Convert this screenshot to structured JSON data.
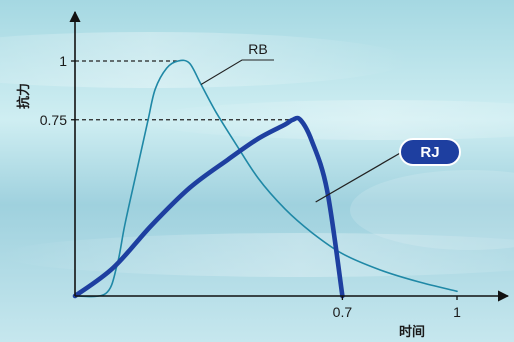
{
  "chart_data": {
    "type": "line",
    "xlabel": "时间",
    "ylabel": "抗力",
    "xlim": [
      0,
      1.1
    ],
    "ylim": [
      0,
      1.15
    ],
    "x_ticks": [
      {
        "value": 0.7,
        "label": "0.7"
      },
      {
        "value": 1,
        "label": "1"
      }
    ],
    "y_ticks": [
      {
        "value": 1,
        "label": "1"
      },
      {
        "value": 0.75,
        "label": "0.75"
      }
    ],
    "grid": false,
    "series": [
      {
        "name": "RB",
        "color": "#1f88a6",
        "width": 1.6,
        "points": [
          [
            0.0,
            0.0
          ],
          [
            0.08,
            0.01
          ],
          [
            0.11,
            0.13
          ],
          [
            0.13,
            0.3
          ],
          [
            0.16,
            0.52
          ],
          [
            0.19,
            0.74
          ],
          [
            0.21,
            0.88
          ],
          [
            0.24,
            0.97
          ],
          [
            0.27,
            1.0
          ],
          [
            0.3,
            0.99
          ],
          [
            0.33,
            0.9
          ],
          [
            0.37,
            0.78
          ],
          [
            0.42,
            0.65
          ],
          [
            0.48,
            0.5
          ],
          [
            0.55,
            0.37
          ],
          [
            0.62,
            0.27
          ],
          [
            0.7,
            0.18
          ],
          [
            0.8,
            0.11
          ],
          [
            0.9,
            0.06
          ],
          [
            1.0,
            0.02
          ]
        ]
      },
      {
        "name": "RJ",
        "color": "#1e3fa0",
        "width": 4.6,
        "points": [
          [
            0.0,
            0.0
          ],
          [
            0.1,
            0.12
          ],
          [
            0.2,
            0.3
          ],
          [
            0.3,
            0.46
          ],
          [
            0.4,
            0.58
          ],
          [
            0.48,
            0.67
          ],
          [
            0.55,
            0.73
          ],
          [
            0.57,
            0.75
          ],
          [
            0.59,
            0.75
          ],
          [
            0.62,
            0.66
          ],
          [
            0.66,
            0.45
          ],
          [
            0.7,
            0.0
          ]
        ]
      }
    ],
    "guides": [
      {
        "y": 1,
        "x_end": 0.27
      },
      {
        "y": 0.75,
        "x_end": 0.58
      }
    ],
    "annotations": [
      {
        "text": "RB",
        "series": "RB",
        "anchor_x": 0.33,
        "anchor_y": 0.9,
        "style": "plain"
      },
      {
        "text": "RJ",
        "series": "RJ",
        "anchor_x": 0.63,
        "anchor_y": 0.4,
        "style": "badge"
      }
    ]
  }
}
